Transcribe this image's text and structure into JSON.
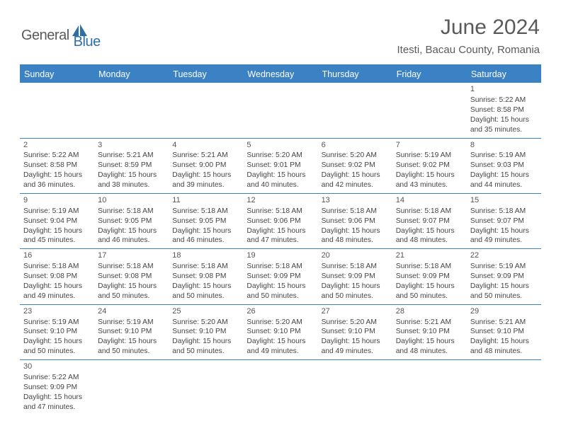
{
  "brand": {
    "general": "General",
    "blue": "Blue"
  },
  "title": "June 2024",
  "location": "Itesti, Bacau County, Romania",
  "colors": {
    "header_bg": "#3b82c4",
    "header_text": "#ffffff",
    "text": "#444444",
    "rule": "#3b82c4",
    "brand_grey": "#5a5a5a",
    "brand_blue": "#2f6fa8"
  },
  "weekdays": [
    "Sunday",
    "Monday",
    "Tuesday",
    "Wednesday",
    "Thursday",
    "Friday",
    "Saturday"
  ],
  "weeks": [
    [
      null,
      null,
      null,
      null,
      null,
      null,
      {
        "d": "1",
        "sr": "Sunrise: 5:22 AM",
        "ss": "Sunset: 8:58 PM",
        "dl1": "Daylight: 15 hours",
        "dl2": "and 35 minutes."
      }
    ],
    [
      {
        "d": "2",
        "sr": "Sunrise: 5:22 AM",
        "ss": "Sunset: 8:58 PM",
        "dl1": "Daylight: 15 hours",
        "dl2": "and 36 minutes."
      },
      {
        "d": "3",
        "sr": "Sunrise: 5:21 AM",
        "ss": "Sunset: 8:59 PM",
        "dl1": "Daylight: 15 hours",
        "dl2": "and 38 minutes."
      },
      {
        "d": "4",
        "sr": "Sunrise: 5:21 AM",
        "ss": "Sunset: 9:00 PM",
        "dl1": "Daylight: 15 hours",
        "dl2": "and 39 minutes."
      },
      {
        "d": "5",
        "sr": "Sunrise: 5:20 AM",
        "ss": "Sunset: 9:01 PM",
        "dl1": "Daylight: 15 hours",
        "dl2": "and 40 minutes."
      },
      {
        "d": "6",
        "sr": "Sunrise: 5:20 AM",
        "ss": "Sunset: 9:02 PM",
        "dl1": "Daylight: 15 hours",
        "dl2": "and 42 minutes."
      },
      {
        "d": "7",
        "sr": "Sunrise: 5:19 AM",
        "ss": "Sunset: 9:02 PM",
        "dl1": "Daylight: 15 hours",
        "dl2": "and 43 minutes."
      },
      {
        "d": "8",
        "sr": "Sunrise: 5:19 AM",
        "ss": "Sunset: 9:03 PM",
        "dl1": "Daylight: 15 hours",
        "dl2": "and 44 minutes."
      }
    ],
    [
      {
        "d": "9",
        "sr": "Sunrise: 5:19 AM",
        "ss": "Sunset: 9:04 PM",
        "dl1": "Daylight: 15 hours",
        "dl2": "and 45 minutes."
      },
      {
        "d": "10",
        "sr": "Sunrise: 5:18 AM",
        "ss": "Sunset: 9:05 PM",
        "dl1": "Daylight: 15 hours",
        "dl2": "and 46 minutes."
      },
      {
        "d": "11",
        "sr": "Sunrise: 5:18 AM",
        "ss": "Sunset: 9:05 PM",
        "dl1": "Daylight: 15 hours",
        "dl2": "and 46 minutes."
      },
      {
        "d": "12",
        "sr": "Sunrise: 5:18 AM",
        "ss": "Sunset: 9:06 PM",
        "dl1": "Daylight: 15 hours",
        "dl2": "and 47 minutes."
      },
      {
        "d": "13",
        "sr": "Sunrise: 5:18 AM",
        "ss": "Sunset: 9:06 PM",
        "dl1": "Daylight: 15 hours",
        "dl2": "and 48 minutes."
      },
      {
        "d": "14",
        "sr": "Sunrise: 5:18 AM",
        "ss": "Sunset: 9:07 PM",
        "dl1": "Daylight: 15 hours",
        "dl2": "and 48 minutes."
      },
      {
        "d": "15",
        "sr": "Sunrise: 5:18 AM",
        "ss": "Sunset: 9:07 PM",
        "dl1": "Daylight: 15 hours",
        "dl2": "and 49 minutes."
      }
    ],
    [
      {
        "d": "16",
        "sr": "Sunrise: 5:18 AM",
        "ss": "Sunset: 9:08 PM",
        "dl1": "Daylight: 15 hours",
        "dl2": "and 49 minutes."
      },
      {
        "d": "17",
        "sr": "Sunrise: 5:18 AM",
        "ss": "Sunset: 9:08 PM",
        "dl1": "Daylight: 15 hours",
        "dl2": "and 50 minutes."
      },
      {
        "d": "18",
        "sr": "Sunrise: 5:18 AM",
        "ss": "Sunset: 9:08 PM",
        "dl1": "Daylight: 15 hours",
        "dl2": "and 50 minutes."
      },
      {
        "d": "19",
        "sr": "Sunrise: 5:18 AM",
        "ss": "Sunset: 9:09 PM",
        "dl1": "Daylight: 15 hours",
        "dl2": "and 50 minutes."
      },
      {
        "d": "20",
        "sr": "Sunrise: 5:18 AM",
        "ss": "Sunset: 9:09 PM",
        "dl1": "Daylight: 15 hours",
        "dl2": "and 50 minutes."
      },
      {
        "d": "21",
        "sr": "Sunrise: 5:18 AM",
        "ss": "Sunset: 9:09 PM",
        "dl1": "Daylight: 15 hours",
        "dl2": "and 50 minutes."
      },
      {
        "d": "22",
        "sr": "Sunrise: 5:19 AM",
        "ss": "Sunset: 9:09 PM",
        "dl1": "Daylight: 15 hours",
        "dl2": "and 50 minutes."
      }
    ],
    [
      {
        "d": "23",
        "sr": "Sunrise: 5:19 AM",
        "ss": "Sunset: 9:10 PM",
        "dl1": "Daylight: 15 hours",
        "dl2": "and 50 minutes."
      },
      {
        "d": "24",
        "sr": "Sunrise: 5:19 AM",
        "ss": "Sunset: 9:10 PM",
        "dl1": "Daylight: 15 hours",
        "dl2": "and 50 minutes."
      },
      {
        "d": "25",
        "sr": "Sunrise: 5:20 AM",
        "ss": "Sunset: 9:10 PM",
        "dl1": "Daylight: 15 hours",
        "dl2": "and 50 minutes."
      },
      {
        "d": "26",
        "sr": "Sunrise: 5:20 AM",
        "ss": "Sunset: 9:10 PM",
        "dl1": "Daylight: 15 hours",
        "dl2": "and 49 minutes."
      },
      {
        "d": "27",
        "sr": "Sunrise: 5:20 AM",
        "ss": "Sunset: 9:10 PM",
        "dl1": "Daylight: 15 hours",
        "dl2": "and 49 minutes."
      },
      {
        "d": "28",
        "sr": "Sunrise: 5:21 AM",
        "ss": "Sunset: 9:10 PM",
        "dl1": "Daylight: 15 hours",
        "dl2": "and 48 minutes."
      },
      {
        "d": "29",
        "sr": "Sunrise: 5:21 AM",
        "ss": "Sunset: 9:10 PM",
        "dl1": "Daylight: 15 hours",
        "dl2": "and 48 minutes."
      }
    ],
    [
      {
        "d": "30",
        "sr": "Sunrise: 5:22 AM",
        "ss": "Sunset: 9:09 PM",
        "dl1": "Daylight: 15 hours",
        "dl2": "and 47 minutes."
      },
      null,
      null,
      null,
      null,
      null,
      null
    ]
  ]
}
